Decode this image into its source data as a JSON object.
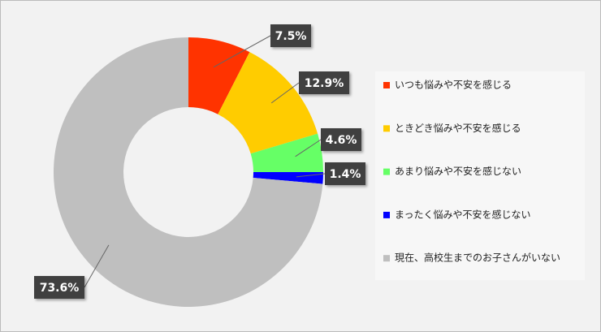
{
  "chart_data": {
    "type": "donut",
    "categories": [
      "いつも悩みや不安を感じる",
      "ときどき悩みや不安を感じる",
      "あまり悩みや不安を感じない",
      "まったく悩みや不安を感じない",
      "現在、高校生までのお子さんがいない"
    ],
    "values": [
      7.5,
      12.9,
      4.6,
      1.4,
      73.6
    ],
    "value_labels": [
      "7.5%",
      "12.9%",
      "4.6%",
      "1.4%",
      "73.6%"
    ],
    "colors": [
      "#ff3300",
      "#ffcc00",
      "#66ff66",
      "#0000ff",
      "#bfbfbf"
    ],
    "legend": "right"
  }
}
